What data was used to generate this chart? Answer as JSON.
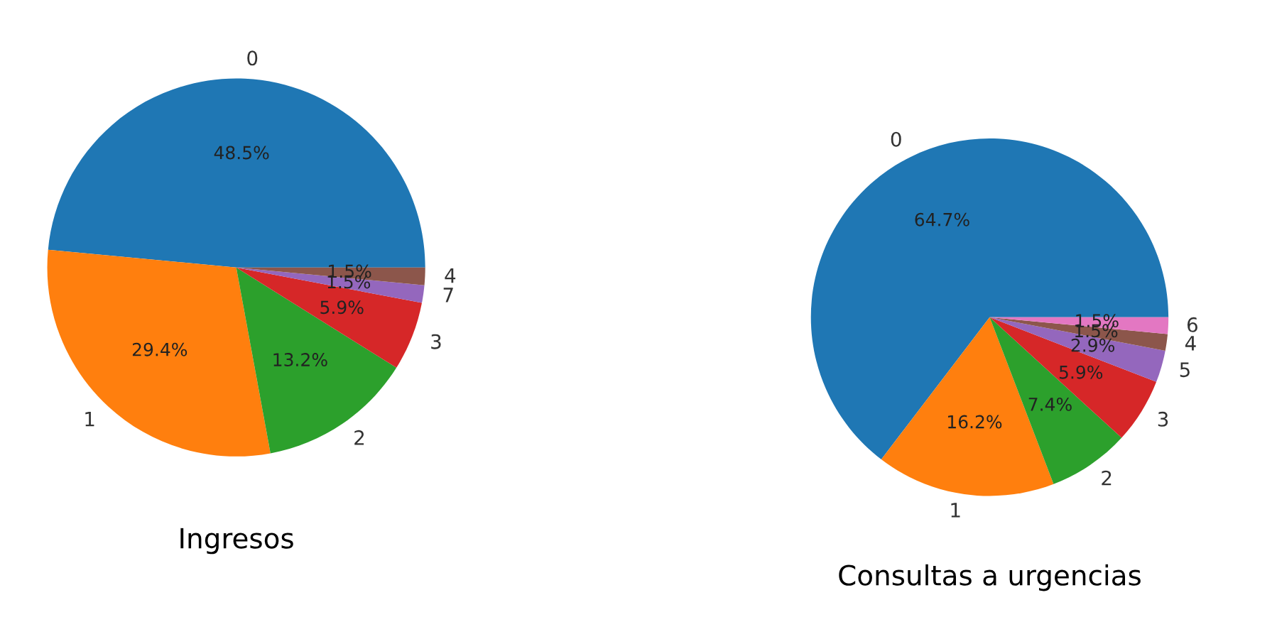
{
  "chart_data": [
    {
      "type": "pie",
      "title": "Ingresos",
      "categories": [
        "0",
        "1",
        "2",
        "3",
        "7",
        "4"
      ],
      "values": [
        48.5,
        29.4,
        13.2,
        5.9,
        1.5,
        1.5
      ],
      "value_labels": [
        "48.5%",
        "29.4%",
        "13.2%",
        "5.9%",
        "1.5%",
        "1.5%"
      ],
      "colors": [
        "#1f77b4",
        "#ff7f0e",
        "#2ca02c",
        "#d62728",
        "#9467bd",
        "#8c564b"
      ]
    },
    {
      "type": "pie",
      "title": "Consultas a urgencias",
      "categories": [
        "0",
        "1",
        "2",
        "3",
        "5",
        "4",
        "6"
      ],
      "values": [
        64.7,
        16.2,
        7.4,
        5.9,
        2.9,
        1.5,
        1.5
      ],
      "value_labels": [
        "64.7%",
        "16.2%",
        "7.4%",
        "5.9%",
        "2.9%",
        "1.5%",
        "1.5%"
      ],
      "colors": [
        "#1f77b4",
        "#ff7f0e",
        "#2ca02c",
        "#d62728",
        "#9467bd",
        "#8c564b",
        "#e377c2"
      ]
    }
  ]
}
